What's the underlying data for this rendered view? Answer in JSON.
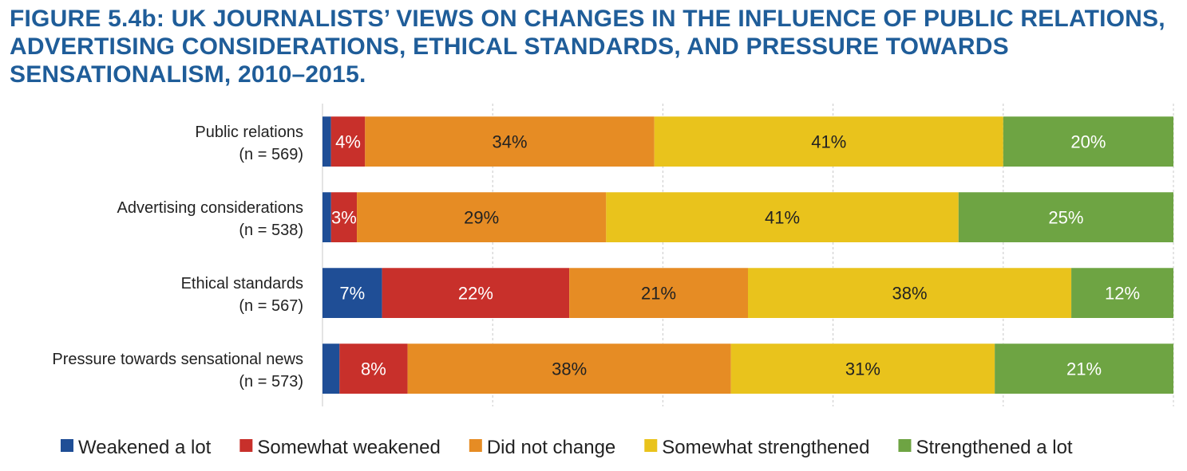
{
  "chart_data": {
    "type": "bar",
    "orientation": "horizontal",
    "stacked": true,
    "title": "FIGURE 5.4b: UK JOURNALISTS’ VIEWS ON CHANGES IN THE INFLUENCE OF PUBLIC RELATIONS, ADVERTISING CONSIDERATIONS, ETHICAL STANDARDS, AND PRESSURE TOWARDS SENSATIONALISM, 2010–2015.",
    "categories": [
      {
        "name": "Public relations",
        "n": "(n = 569)"
      },
      {
        "name": "Advertising considerations",
        "n": "(n = 538)"
      },
      {
        "name": "Ethical standards",
        "n": "(n = 567)"
      },
      {
        "name": "Pressure towards sensational news",
        "n": "(n = 573)"
      }
    ],
    "series": [
      {
        "name": "Weakened a lot",
        "color": "#1f4e96",
        "text_color": "#ffffff",
        "values": [
          1,
          1,
          7,
          2
        ],
        "labels": [
          "",
          "",
          "7%",
          ""
        ]
      },
      {
        "name": "Somewhat weakened",
        "color": "#c8302b",
        "text_color": "#ffffff",
        "values": [
          4,
          3,
          22,
          8
        ],
        "labels": [
          "4%",
          "3%",
          "22%",
          "8%"
        ]
      },
      {
        "name": "Did not change",
        "color": "#e68c24",
        "text_color": "#222222",
        "values": [
          34,
          29,
          21,
          38
        ],
        "labels": [
          "34%",
          "29%",
          "21%",
          "38%"
        ]
      },
      {
        "name": "Somewhat strengthened",
        "color": "#e9c31c",
        "text_color": "#222222",
        "values": [
          41,
          41,
          38,
          31
        ],
        "labels": [
          "41%",
          "41%",
          "38%",
          "31%"
        ]
      },
      {
        "name": "Strengthened a lot",
        "color": "#6ea443",
        "text_color": "#ffffff",
        "values": [
          20,
          25,
          12,
          21
        ],
        "labels": [
          "20%",
          "25%",
          "12%",
          "21%"
        ]
      }
    ],
    "xlim": [
      0,
      100
    ],
    "grid": true,
    "legend_position": "bottom"
  }
}
